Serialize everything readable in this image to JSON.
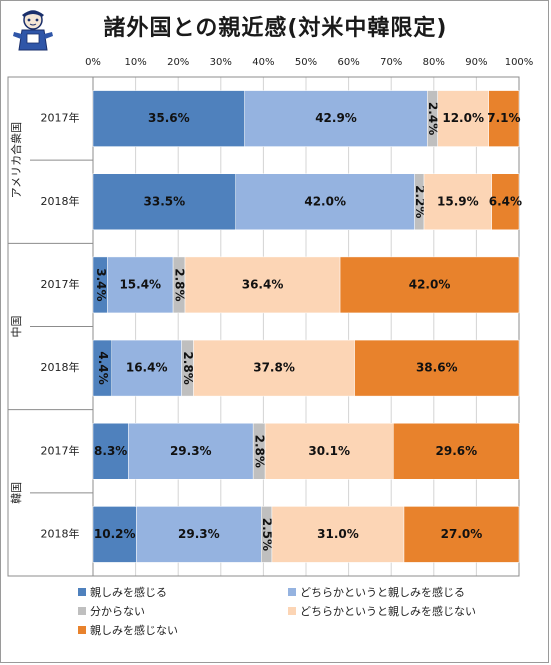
{
  "title": "諸外国との親近感(対米中韓限定)",
  "chart_data": {
    "type": "bar",
    "orientation": "horizontal",
    "stacked": "percent",
    "xlim": [
      0,
      100
    ],
    "x_ticks": [
      "0%",
      "10%",
      "20%",
      "30%",
      "40%",
      "50%",
      "60%",
      "70%",
      "80%",
      "90%",
      "100%"
    ],
    "groups": [
      {
        "name": "アメリカ合衆国",
        "years": [
          "2017年",
          "2018年"
        ]
      },
      {
        "name": "中国",
        "years": [
          "2017年",
          "2018年"
        ]
      },
      {
        "name": "韓国",
        "years": [
          "2017年",
          "2018年"
        ]
      }
    ],
    "series": [
      {
        "name": "親しみを感じる",
        "color": "#4f81bd",
        "values": [
          35.6,
          33.5,
          3.4,
          4.4,
          8.3,
          10.2
        ],
        "labels": [
          "35.6%",
          "33.5%",
          "3.4%",
          "4.4%",
          "8.3%",
          "10.2%"
        ]
      },
      {
        "name": "どちらかというと親しみを感じる",
        "color": "#95b3e0",
        "values": [
          42.9,
          42.0,
          15.4,
          16.4,
          29.3,
          29.3
        ],
        "labels": [
          "42.9%",
          "42.0%",
          "15.4%",
          "16.4%",
          "29.3%",
          "29.3%"
        ]
      },
      {
        "name": "分からない",
        "color": "#bfbfbf",
        "values": [
          2.4,
          2.2,
          2.8,
          2.8,
          2.8,
          2.5
        ],
        "labels": [
          "2.4%",
          "2.2%",
          "2.8%",
          "2.8%",
          "2.8%",
          "2.5%"
        ]
      },
      {
        "name": "どちらかというと親しみを感じない",
        "color": "#fcd5b5",
        "values": [
          12.0,
          15.9,
          36.4,
          37.8,
          30.1,
          31.0
        ],
        "labels": [
          "12.0%",
          "15.9%",
          "36.4%",
          "37.8%",
          "30.1%",
          "31.0%"
        ]
      },
      {
        "name": "親しみを感じない",
        "color": "#e8822c",
        "values": [
          7.1,
          6.4,
          42.0,
          38.6,
          29.6,
          27.0
        ],
        "labels": [
          "7.1%",
          "6.4%",
          "42.0%",
          "38.6%",
          "29.6%",
          "27.0%"
        ]
      }
    ],
    "grid": true,
    "legend_position": "bottom"
  }
}
